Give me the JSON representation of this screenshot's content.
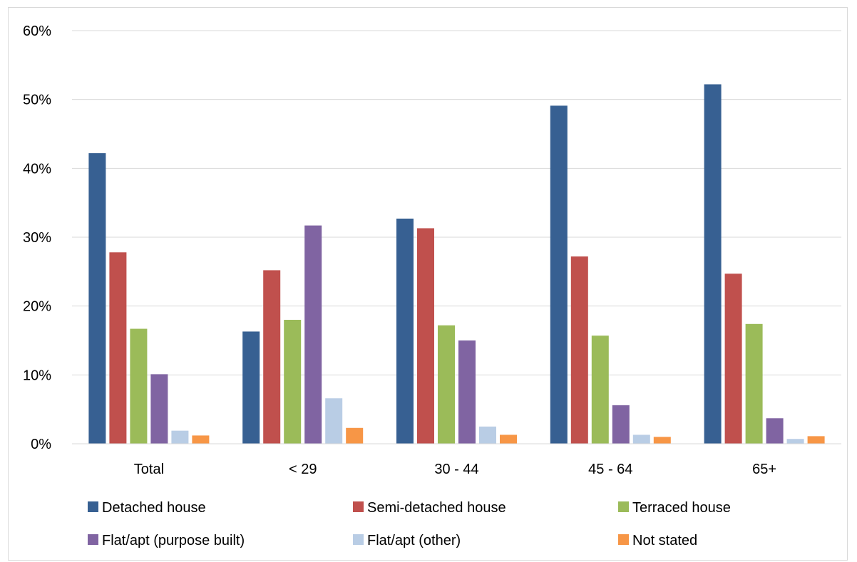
{
  "chart_data": {
    "type": "bar",
    "title": "",
    "xlabel": "",
    "ylabel": "",
    "categories": [
      "Total",
      "< 29",
      "30 - 44",
      "45 - 64",
      "65+"
    ],
    "ylim": [
      0,
      0.6
    ],
    "yticks": [
      0,
      0.1,
      0.2,
      0.3,
      0.4,
      0.5,
      0.6
    ],
    "ytick_labels": [
      "0%",
      "10%",
      "20%",
      "30%",
      "40%",
      "50%",
      "60%"
    ],
    "grid": true,
    "legend_position": "bottom",
    "series": [
      {
        "name": "Detached house",
        "color": "#376092",
        "values": [
          0.422,
          0.163,
          0.327,
          0.491,
          0.522
        ]
      },
      {
        "name": "Semi-detached house",
        "color": "#C0504D",
        "values": [
          0.278,
          0.252,
          0.313,
          0.272,
          0.247
        ]
      },
      {
        "name": "Terraced house",
        "color": "#9BBB59",
        "values": [
          0.167,
          0.18,
          0.172,
          0.157,
          0.174
        ]
      },
      {
        "name": "Flat/apt (purpose built)",
        "color": "#8064A2",
        "values": [
          0.101,
          0.317,
          0.15,
          0.056,
          0.037
        ]
      },
      {
        "name": "Flat/apt (other)",
        "color": "#B9CDE5",
        "values": [
          0.019,
          0.066,
          0.025,
          0.013,
          0.007
        ]
      },
      {
        "name": "Not stated",
        "color": "#F79646",
        "values": [
          0.012,
          0.023,
          0.013,
          0.01,
          0.011
        ]
      }
    ]
  }
}
